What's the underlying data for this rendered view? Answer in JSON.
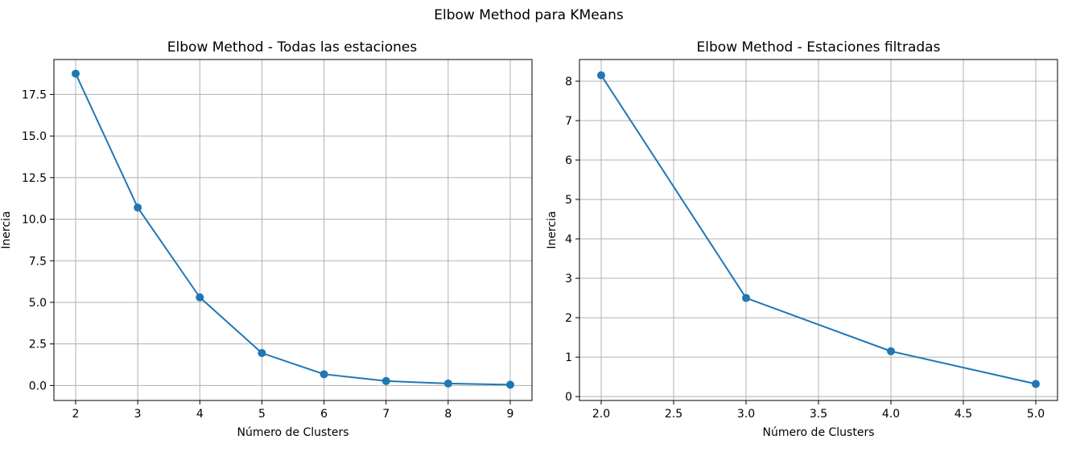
{
  "figure": {
    "suptitle": "Elbow Method para KMeans"
  },
  "chart_data": [
    {
      "type": "line",
      "title": "Elbow Method - Todas las estaciones",
      "xlabel": "Número de Clusters",
      "ylabel": "Inercia",
      "x": [
        2,
        3,
        4,
        5,
        6,
        7,
        8,
        9
      ],
      "series": [
        {
          "values": [
            18.75,
            10.7,
            5.3,
            1.95,
            0.68,
            0.27,
            0.12,
            0.05
          ]
        }
      ],
      "xlim": [
        1.65,
        9.35
      ],
      "ylim": [
        -0.9,
        19.6
      ],
      "xticks": [
        2,
        3,
        4,
        5,
        6,
        7,
        8,
        9
      ],
      "xtick_labels": [
        "2",
        "3",
        "4",
        "5",
        "6",
        "7",
        "8",
        "9"
      ],
      "yticks": [
        0,
        2.5,
        5,
        7.5,
        10,
        12.5,
        15,
        17.5
      ],
      "ytick_labels": [
        "0.0",
        "2.5",
        "5.0",
        "7.5",
        "10.0",
        "12.5",
        "15.0",
        "17.5"
      ],
      "grid": true,
      "marker": "circle",
      "color": "#1f77b4"
    },
    {
      "type": "line",
      "title": "Elbow Method - Estaciones filtradas",
      "xlabel": "Número de Clusters",
      "ylabel": "Inercia",
      "x": [
        2,
        3,
        4,
        5
      ],
      "series": [
        {
          "values": [
            8.15,
            2.5,
            1.15,
            0.32
          ]
        }
      ],
      "xlim": [
        1.85,
        5.15
      ],
      "ylim": [
        -0.1,
        8.55
      ],
      "xticks": [
        2,
        2.5,
        3,
        3.5,
        4,
        4.5,
        5
      ],
      "xtick_labels": [
        "2.0",
        "2.5",
        "3.0",
        "3.5",
        "4.0",
        "4.5",
        "5.0"
      ],
      "yticks": [
        0,
        1,
        2,
        3,
        4,
        5,
        6,
        7,
        8
      ],
      "ytick_labels": [
        "0",
        "1",
        "2",
        "3",
        "4",
        "5",
        "6",
        "7",
        "8"
      ],
      "grid": true,
      "marker": "circle",
      "color": "#1f77b4"
    }
  ]
}
